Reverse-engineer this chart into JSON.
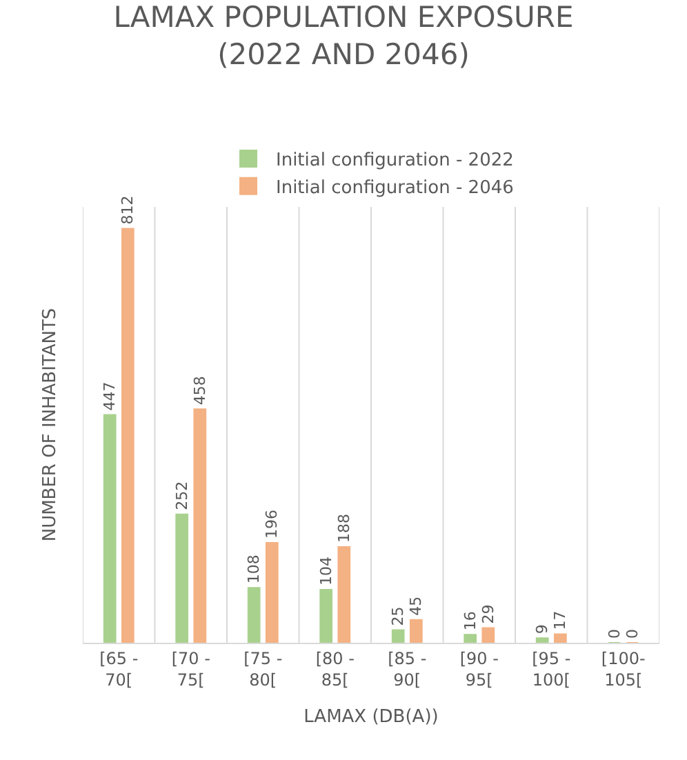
{
  "chart_data": {
    "type": "bar",
    "title": "LAMAX POPULATION EXPOSURE  (2022 AND 2046)",
    "xlabel": "LAMAX (DB(A))",
    "ylabel": "NUMBER OF INHABITANTS",
    "categories": [
      "[65 - 70[",
      "[70 - 75[",
      "[75 - 80[",
      "[80 - 85[",
      "[85 - 90[",
      "[90 - 95[",
      "[95 - 100[",
      "[100- 105["
    ],
    "series": [
      {
        "name": "Initial configuration - 2022",
        "color": "#a9d18e",
        "values": [
          447,
          252,
          108,
          104,
          25,
          16,
          9,
          0
        ]
      },
      {
        "name": "Initial configuration - 2046",
        "color": "#f4b183",
        "values": [
          812,
          458,
          196,
          188,
          45,
          29,
          17,
          0
        ]
      }
    ],
    "data_labels": true,
    "legend": "top",
    "grid": "x"
  }
}
